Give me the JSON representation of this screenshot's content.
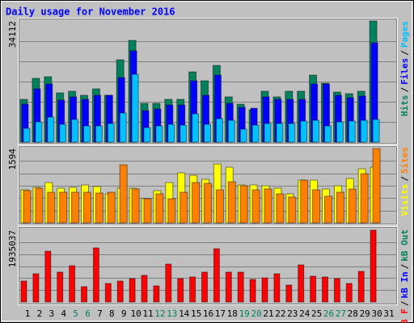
{
  "chart_data": [
    {
      "type": "bar",
      "title": "Daily usage for November 2016",
      "ylim": [
        0,
        34112
      ],
      "yticks": [
        34112
      ],
      "legend_separator": "/",
      "series": [
        {
          "name": "Hits",
          "color": "#00805c",
          "values": [
            12050,
            17960,
            18420,
            13870,
            14330,
            13190,
            15010,
            13190,
            23200,
            28650,
            10920,
            10920,
            12050,
            12050,
            19780,
            17280,
            21600,
            12740,
            10690,
            9100,
            14330,
            12740,
            14330,
            14330,
            18870,
            16600,
            14100,
            13640,
            14330,
            34112,
            null
          ]
        },
        {
          "name": "Files",
          "color": "#0000ff",
          "values": [
            10690,
            15010,
            16370,
            11820,
            12740,
            12050,
            13190,
            13190,
            18190,
            25700,
            8870,
            9320,
            10460,
            10460,
            17280,
            13190,
            18870,
            10920,
            9780,
            9550,
            12740,
            12050,
            12050,
            12050,
            16370,
            16370,
            13190,
            12510,
            12960,
            27970,
            null
          ]
        },
        {
          "name": "Pages",
          "color": "#00c0ff",
          "values": [
            3870,
            5690,
            7050,
            5000,
            6370,
            4550,
            4550,
            5230,
            8190,
            19100,
            4090,
            4550,
            5000,
            4780,
            7960,
            5000,
            6600,
            6140,
            3640,
            4780,
            5230,
            5230,
            5230,
            5910,
            6140,
            4550,
            5690,
            5910,
            6140,
            6370,
            null
          ]
        }
      ]
    },
    {
      "type": "bar",
      "ylim": [
        0,
        1594
      ],
      "yticks": [
        1594
      ],
      "legend_separator": "/",
      "series": [
        {
          "name": "Visits",
          "color": "#ffff00",
          "values": [
            709,
            761,
            865,
            744,
            761,
            813,
            779,
            623,
            744,
            744,
            519,
            692,
            865,
            1073,
            1021,
            934,
            1263,
            1194,
            813,
            813,
            796,
            744,
            623,
            917,
            917,
            727,
            796,
            952,
            1159,
            1194,
            null
          ]
        },
        {
          "name": "Sites",
          "color": "#ff8000",
          "values": [
            692,
            744,
            657,
            657,
            657,
            657,
            640,
            657,
            1246,
            727,
            519,
            623,
            519,
            657,
            865,
            848,
            709,
            882,
            796,
            709,
            727,
            623,
            554,
            917,
            709,
            571,
            657,
            727,
            1055,
            1594,
            null
          ]
        }
      ]
    },
    {
      "type": "bar",
      "ylim": [
        0,
        1935037
      ],
      "yticks": [
        1935037
      ],
      "legend_separator": "/",
      "categories": [
        "1",
        "2",
        "3",
        "4",
        "5",
        "6",
        "7",
        "8",
        "9",
        "10",
        "11",
        "12",
        "13",
        "14",
        "15",
        "16",
        "17",
        "18",
        "19",
        "20",
        "21",
        "22",
        "23",
        "24",
        "25",
        "26",
        "27",
        "28",
        "29",
        "30",
        "31"
      ],
      "weekend_indices": [
        4,
        5,
        11,
        12,
        18,
        19,
        25,
        26
      ],
      "weekend_color": "#00805c",
      "weekday_color": "#000000",
      "series": [
        {
          "name": "kB F",
          "color": "#ff0000",
          "values": [
            565300,
            761000,
            1369700,
            804500,
            978400,
            413100,
            1456700,
            500100,
            565300,
            630500,
            717500,
            434800,
            1021900,
            630500,
            674000,
            804500,
            1435000,
            804500,
            804500,
            608800,
            652300,
            761000,
            456600,
            1000100,
            695700,
            674000,
            630500,
            500100,
            826200,
            1935037,
            null
          ]
        },
        {
          "name": "kB In",
          "color": "#0000ff",
          "values": [
            null,
            null,
            null,
            null,
            null,
            null,
            null,
            null,
            null,
            null,
            null,
            null,
            null,
            null,
            null,
            null,
            null,
            null,
            null,
            null,
            null,
            null,
            null,
            null,
            null,
            null,
            null,
            null,
            null,
            null,
            null
          ]
        },
        {
          "name": "kB Out",
          "color": "#00805c",
          "values": [
            null,
            null,
            null,
            null,
            null,
            null,
            null,
            null,
            null,
            null,
            null,
            null,
            null,
            null,
            null,
            null,
            null,
            null,
            null,
            null,
            null,
            null,
            null,
            null,
            null,
            null,
            null,
            null,
            null,
            null,
            null
          ]
        }
      ]
    }
  ]
}
